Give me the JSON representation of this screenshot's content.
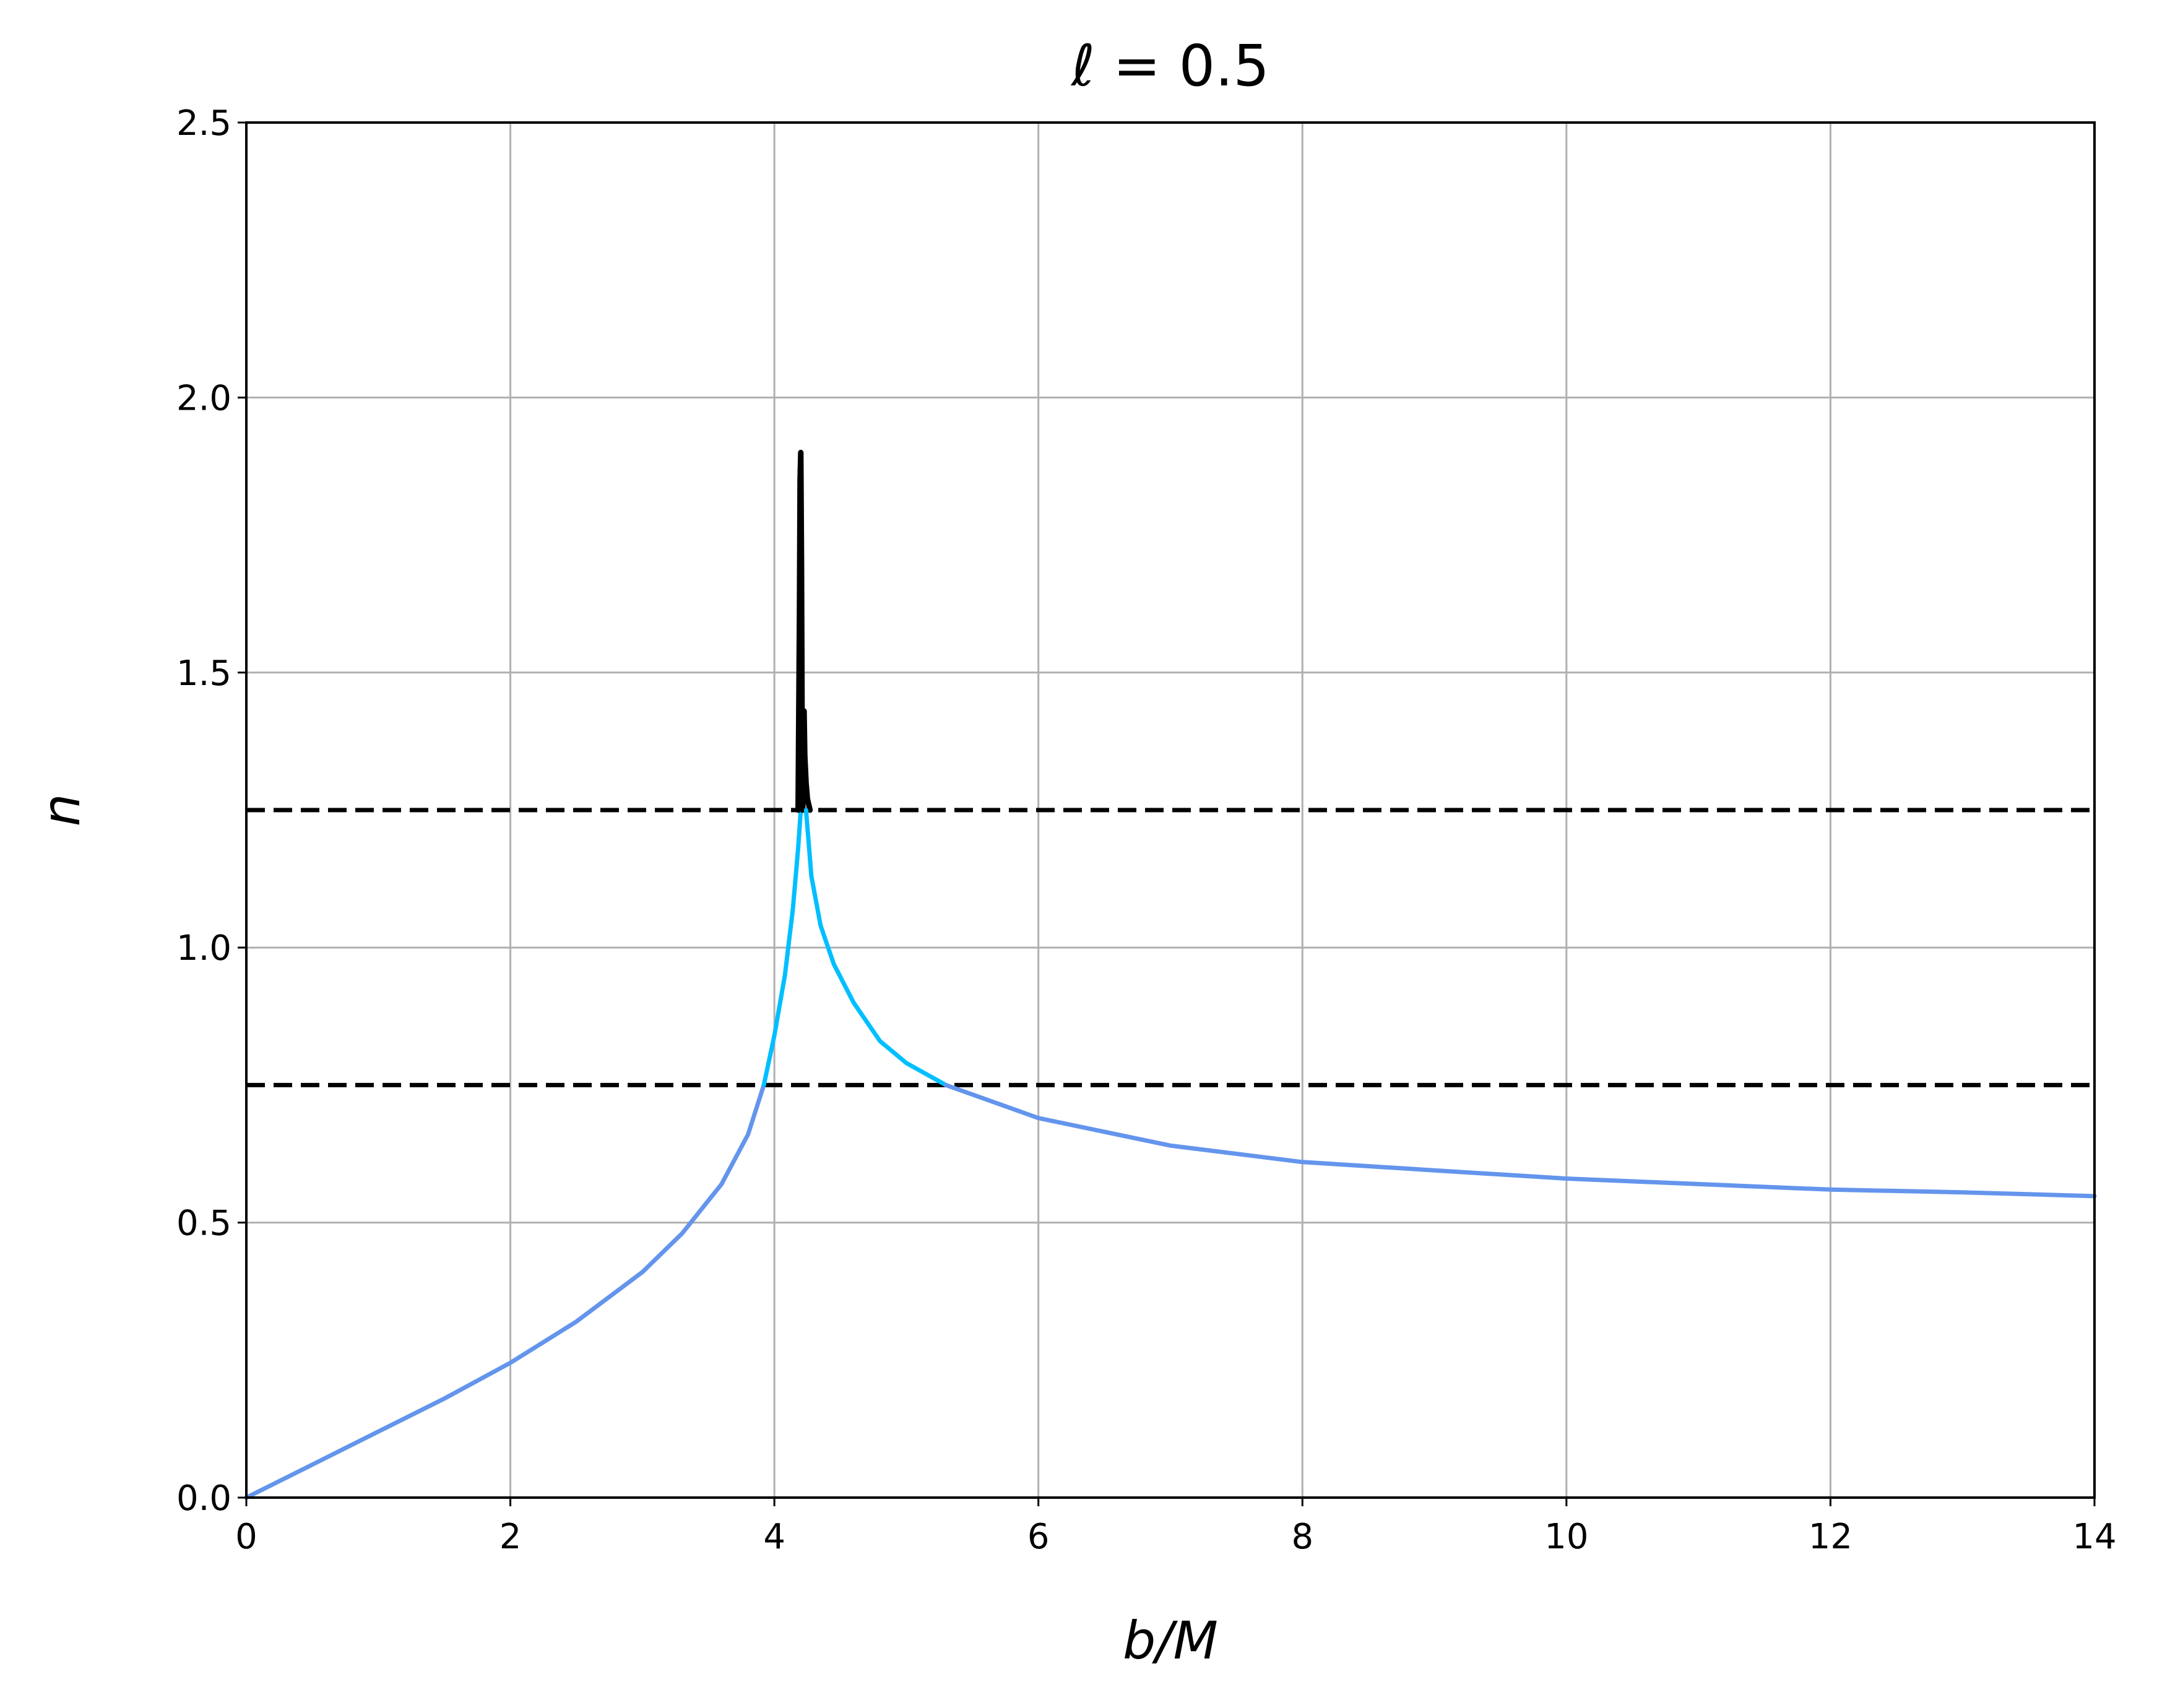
{
  "chart_data": {
    "type": "line",
    "title": "ℓ = 0.5",
    "xlabel": "b/M",
    "ylabel": "n",
    "xlim": [
      0,
      14
    ],
    "ylim": [
      0,
      2.5
    ],
    "grid": true,
    "x_ticks": [
      "0",
      "2",
      "4",
      "6",
      "8",
      "10",
      "12",
      "14"
    ],
    "y_ticks": [
      "0.0",
      "0.5",
      "1.0",
      "1.5",
      "2.0",
      "2.5"
    ],
    "x_tick_values": [
      0,
      2,
      4,
      6,
      8,
      10,
      12,
      14
    ],
    "y_tick_values": [
      0,
      0.5,
      1.0,
      1.5,
      2.0,
      2.5
    ],
    "reference_lines": [
      {
        "y": 1.25,
        "style": "dashed",
        "color": "#000000"
      },
      {
        "y": 0.75,
        "style": "dashed",
        "color": "#000000"
      }
    ],
    "series": [
      {
        "color": "#6495ED",
        "x": [
          0,
          0.5,
          1.0,
          1.5,
          2.0,
          2.5,
          3.0,
          3.3,
          3.6,
          3.8,
          3.92
        ],
        "y": [
          0,
          0.06,
          0.12,
          0.18,
          0.245,
          0.32,
          0.41,
          0.48,
          0.57,
          0.66,
          0.75
        ]
      },
      {
        "color": "#00BFFF",
        "x": [
          3.92,
          4.0,
          4.08,
          4.14,
          4.18,
          4.2
        ],
        "y": [
          0.75,
          0.84,
          0.95,
          1.07,
          1.18,
          1.25
        ]
      },
      {
        "color": "#000000",
        "x": [
          4.18,
          4.19,
          4.195,
          4.2,
          4.205,
          4.21,
          4.215,
          4.22,
          4.225,
          4.23,
          4.24,
          4.25,
          4.27
        ],
        "y": [
          1.25,
          1.6,
          1.85,
          1.9,
          1.7,
          1.4,
          1.25,
          1.4,
          1.43,
          1.35,
          1.3,
          1.27,
          1.25
        ]
      },
      {
        "color": "#00BFFF",
        "x": [
          4.24,
          4.28,
          4.35,
          4.45,
          4.6,
          4.8,
          5.0,
          5.3
        ],
        "y": [
          1.25,
          1.13,
          1.04,
          0.97,
          0.9,
          0.83,
          0.79,
          0.75
        ]
      },
      {
        "color": "#6495ED",
        "x": [
          5.3,
          6.0,
          7.0,
          8.0,
          9.0,
          10.0,
          11.0,
          12.0,
          13.0,
          14.0
        ],
        "y": [
          0.75,
          0.69,
          0.64,
          0.61,
          0.595,
          0.58,
          0.57,
          0.56,
          0.555,
          0.548
        ]
      }
    ]
  }
}
